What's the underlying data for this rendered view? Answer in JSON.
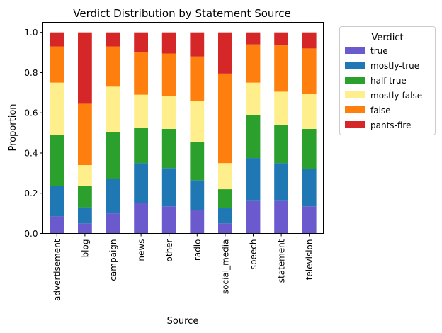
{
  "chart_data": {
    "type": "bar",
    "stacked": true,
    "title": "Verdict Distribution by Statement Source",
    "xlabel": "Source",
    "ylabel": "Proportion",
    "ylim": [
      0,
      1.05
    ],
    "yticks": [
      "0.0",
      "0.2",
      "0.4",
      "0.6",
      "0.8",
      "1.0"
    ],
    "grid": false,
    "legend": {
      "title": "Verdict",
      "placement": "outside-right-top"
    },
    "categories": [
      "advertisement",
      "blog",
      "campaign",
      "news",
      "other",
      "radio",
      "social_media",
      "speech",
      "statement",
      "television"
    ],
    "series": [
      {
        "name": "true",
        "color": "#6a5acd",
        "values": [
          0.085,
          0.05,
          0.1,
          0.15,
          0.135,
          0.115,
          0.05,
          0.165,
          0.165,
          0.135
        ]
      },
      {
        "name": "mostly-true",
        "color": "#1f77b4",
        "values": [
          0.15,
          0.08,
          0.17,
          0.2,
          0.19,
          0.15,
          0.075,
          0.21,
          0.185,
          0.185
        ]
      },
      {
        "name": "half-true",
        "color": "#2ca02c",
        "values": [
          0.255,
          0.105,
          0.235,
          0.175,
          0.195,
          0.19,
          0.095,
          0.215,
          0.19,
          0.2
        ]
      },
      {
        "name": "mostly-false",
        "color": "#ffee8c",
        "values": [
          0.26,
          0.105,
          0.225,
          0.165,
          0.165,
          0.205,
          0.13,
          0.16,
          0.165,
          0.175
        ]
      },
      {
        "name": "false",
        "color": "#ff7f0e",
        "values": [
          0.18,
          0.305,
          0.2,
          0.21,
          0.21,
          0.22,
          0.445,
          0.19,
          0.23,
          0.225
        ]
      },
      {
        "name": "pants-fire",
        "color": "#d62728",
        "values": [
          0.07,
          0.355,
          0.07,
          0.1,
          0.105,
          0.12,
          0.205,
          0.06,
          0.065,
          0.08
        ]
      }
    ]
  }
}
